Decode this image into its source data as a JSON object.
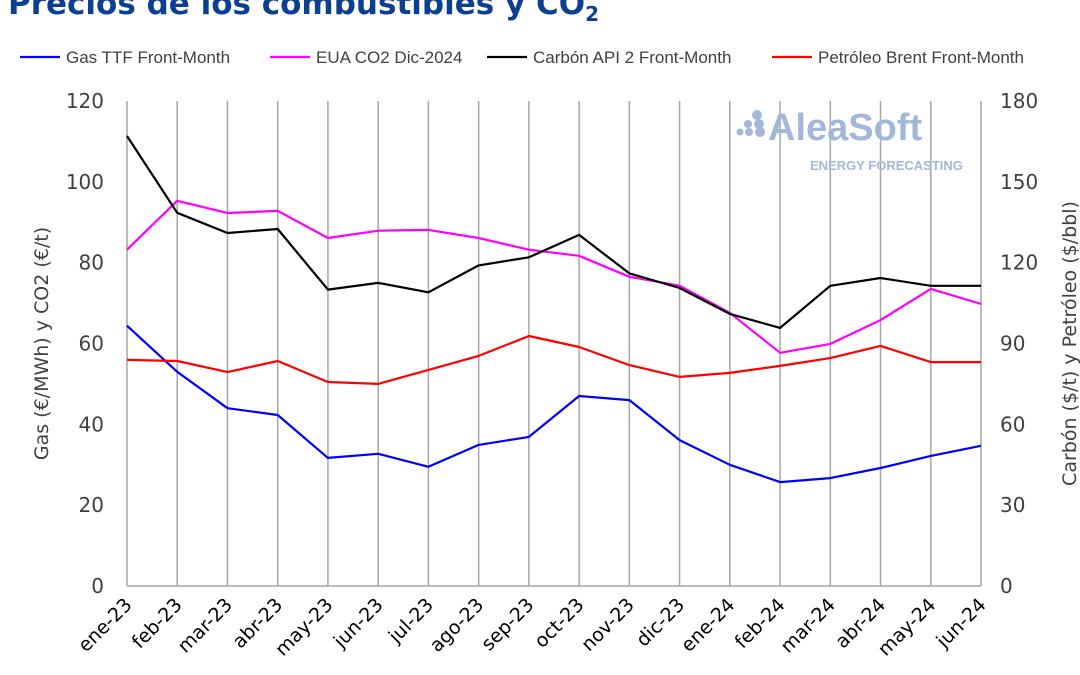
{
  "title": "Precios de los combustibles y CO",
  "title_subscript": "2",
  "logo": {
    "name": "AleaSoft",
    "tagline": "ENERGY FORECASTING"
  },
  "chart_data": {
    "type": "line",
    "categories": [
      "ene-23",
      "feb-23",
      "mar-23",
      "abr-23",
      "may-23",
      "jun-23",
      "jul-23",
      "ago-23",
      "sep-23",
      "oct-23",
      "nov-23",
      "dic-23",
      "ene-24",
      "feb-24",
      "mar-24",
      "abr-24",
      "may-24",
      "jun-24"
    ],
    "ylabel_left": "Gas (€/MWh) y CO2 (€/t)",
    "ylabel_right": "Carbón ($/t) y Petróleo ($/bbl)",
    "ylim_left": [
      0,
      120
    ],
    "yticks_left": [
      0,
      20,
      40,
      60,
      80,
      100,
      120
    ],
    "ylim_right": [
      0,
      180
    ],
    "yticks_right": [
      0,
      30,
      60,
      90,
      120,
      150,
      180
    ],
    "grid": "vertical",
    "legend": "top",
    "series": [
      {
        "name": "Gas TTF Front-Month",
        "axis": "left",
        "color": "#0000ff",
        "values": [
          64.4,
          53,
          44,
          42.3,
          31.7,
          32.7,
          29.5,
          34.9,
          36.9,
          47,
          46,
          36.1,
          30,
          25.7,
          26.7,
          29.2,
          32.2,
          34.7
        ]
      },
      {
        "name": "EUA CO2 Dic-2024",
        "axis": "left",
        "color": "#ff00ff",
        "values": [
          83.2,
          95.3,
          92.3,
          92.8,
          86.1,
          87.9,
          88.1,
          86.1,
          83.2,
          81.7,
          76.5,
          74.3,
          67.6,
          57.7,
          59.9,
          65.8,
          73.5,
          69.8
        ]
      },
      {
        "name": "Carbón API 2 Front-Month",
        "axis": "right",
        "color": "#000000",
        "values": [
          167,
          138.5,
          131,
          132.5,
          110,
          112.5,
          109,
          119,
          122,
          130.3,
          116,
          110.6,
          101,
          95.8,
          111.4,
          114.3,
          111.4,
          111.4
        ]
      },
      {
        "name": "Petróleo Brent Front-Month",
        "axis": "right",
        "color": "#ff0000",
        "values": [
          83.9,
          83.5,
          79.4,
          83.5,
          75.7,
          75,
          80.2,
          85.4,
          92.8,
          88.7,
          82,
          77.6,
          79.1,
          81.7,
          84.6,
          89.1,
          83.1,
          83.1
        ]
      }
    ]
  }
}
